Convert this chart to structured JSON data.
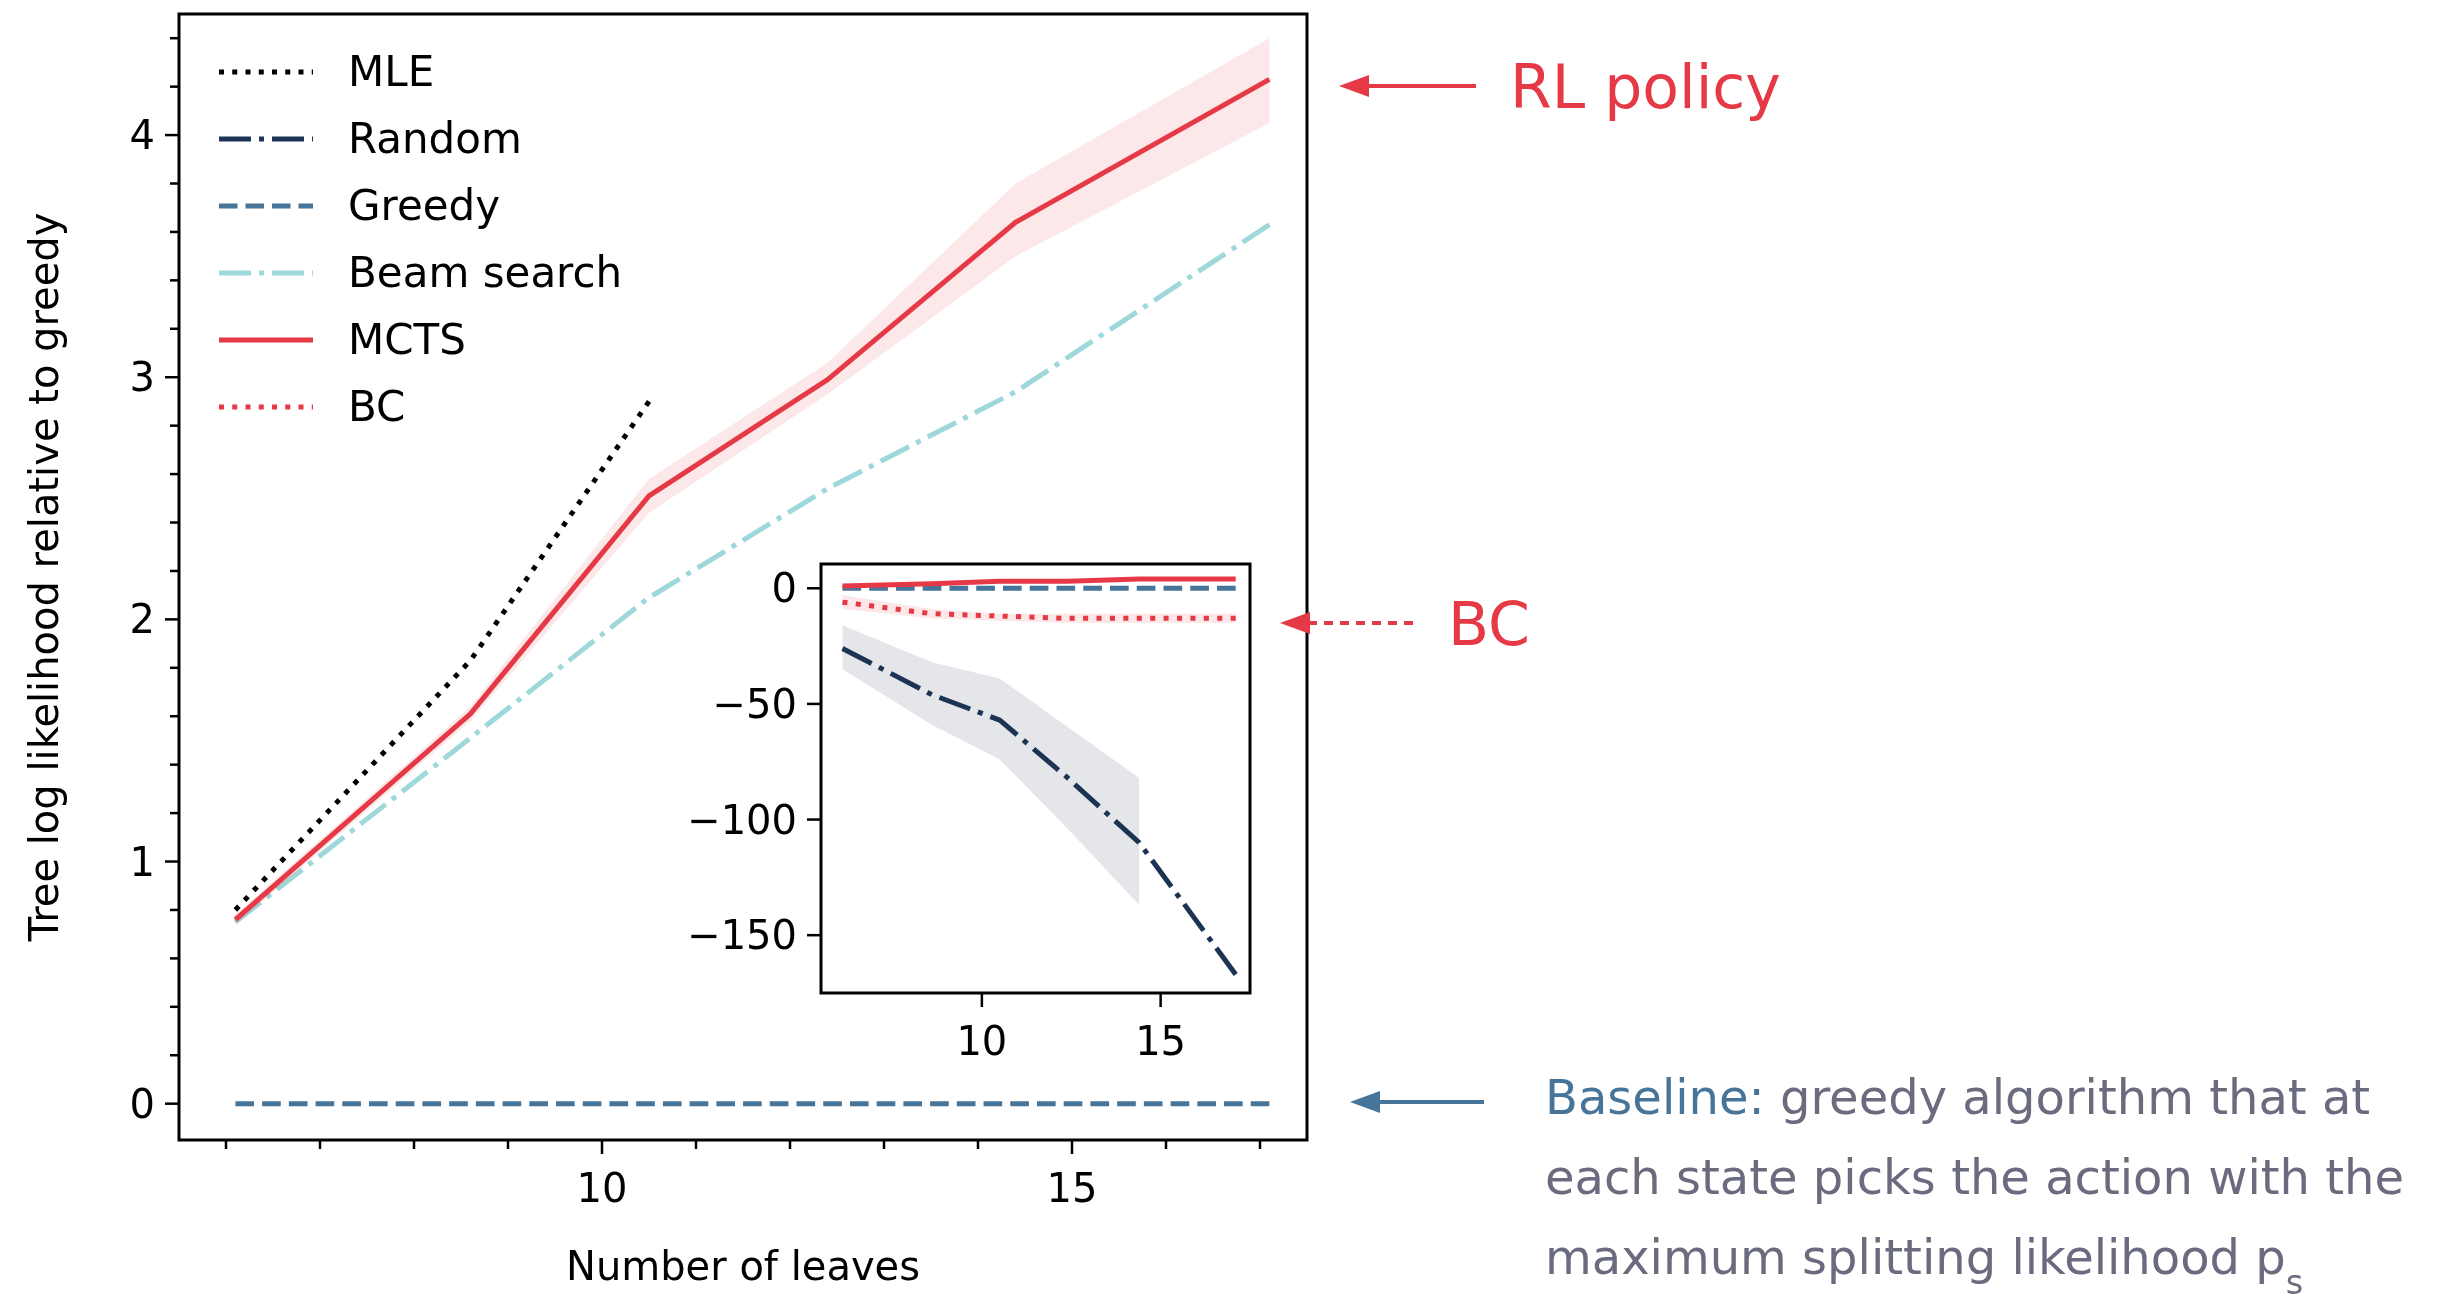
{
  "chart_data": [
    {
      "type": "line",
      "xlabel": "Number of leaves",
      "ylabel": "Tree log likelihood relative to greedy",
      "xlim": [
        5.5,
        17.5
      ],
      "ylim": [
        -0.15,
        4.5
      ],
      "xticks": [
        {
          "value": 6,
          "label": null
        },
        {
          "value": 7,
          "label": null
        },
        {
          "value": 8,
          "label": null
        },
        {
          "value": 9,
          "label": null
        },
        {
          "value": 10,
          "label": "10"
        },
        {
          "value": 11,
          "label": null
        },
        {
          "value": 12,
          "label": null
        },
        {
          "value": 13,
          "label": null
        },
        {
          "value": 14,
          "label": null
        },
        {
          "value": 15,
          "label": "15"
        },
        {
          "value": 16,
          "label": null
        },
        {
          "value": 17,
          "label": null
        }
      ],
      "yticks": [
        0,
        {
          "value": 0.2,
          "label": null
        },
        {
          "value": 0.4,
          "label": null
        },
        {
          "value": 0.6,
          "label": null
        },
        {
          "value": 0.8,
          "label": null
        },
        1,
        {
          "value": 1.2,
          "label": null
        },
        {
          "value": 1.4,
          "label": null
        },
        {
          "value": 1.6,
          "label": null
        },
        {
          "value": 1.8,
          "label": null
        },
        2,
        {
          "value": 2.2,
          "label": null
        },
        {
          "value": 2.4,
          "label": null
        },
        {
          "value": 2.6,
          "label": null
        },
        {
          "value": 2.8,
          "label": null
        },
        3,
        {
          "value": 3.2,
          "label": null
        },
        {
          "value": 3.4,
          "label": null
        },
        {
          "value": 3.6,
          "label": null
        },
        {
          "value": 3.8,
          "label": null
        },
        4,
        {
          "value": 4.2,
          "label": null
        },
        {
          "value": 4.4,
          "label": null
        }
      ],
      "legend": "top left",
      "x": [
        6.1,
        8.6,
        10.5,
        12.4,
        14.4,
        17.1
      ],
      "series": [
        {
          "name": "MLE",
          "color": "#000000",
          "line_style": "dotted",
          "x": [
            6.1,
            8.6,
            10.5
          ],
          "values": [
            0.8,
            1.83,
            2.9
          ]
        },
        {
          "name": "Random",
          "color": "#1d3354",
          "line_style": "dashdot",
          "values": [
            null,
            null,
            null,
            null,
            null,
            null
          ]
        },
        {
          "name": "Greedy",
          "color": "#467599",
          "line_style": "dashed",
          "values": [
            0,
            0,
            0,
            0,
            0,
            0
          ]
        },
        {
          "name": "Beam search",
          "color": "#9ed8db",
          "line_style": "dashdot",
          "values": [
            0.75,
            1.51,
            2.09,
            2.54,
            2.94,
            3.63
          ]
        },
        {
          "name": "MCTS",
          "color": "#e63946",
          "line_style": "solid",
          "values": [
            0.76,
            1.61,
            2.51,
            2.99,
            3.64,
            4.23
          ],
          "lower": [
            0.74,
            1.58,
            2.44,
            2.93,
            3.5,
            4.05
          ],
          "upper": [
            0.78,
            1.64,
            2.58,
            3.06,
            3.8,
            4.4
          ]
        },
        {
          "name": "BC",
          "color": "#e63946",
          "line_style": "dotted",
          "values": [
            null,
            null,
            null,
            null,
            null,
            null
          ]
        }
      ],
      "annotations": [
        "RL policy",
        "Baseline: greedy algorithm that at each state picks the action with the maximum splitting likelihood p$_{s}$"
      ]
    },
    {
      "type": "line",
      "xlim": [
        5.5,
        17.5
      ],
      "ylim": [
        -175,
        10.5
      ],
      "xticks": [
        {
          "value": 10,
          "label": "10"
        },
        {
          "value": 15,
          "label": "15"
        }
      ],
      "yticks": [
        0,
        {
          "value": -50,
          "label": "−50"
        },
        {
          "value": -100,
          "label": "−100"
        },
        {
          "value": -150,
          "label": "−150"
        }
      ],
      "x": [
        6.1,
        8.6,
        10.5,
        12.4,
        14.4,
        17.1
      ],
      "series": [
        {
          "color": "#1d3354",
          "line_style": "dashdot",
          "values": [
            -26,
            -46,
            -57,
            -82,
            -110,
            -167
          ],
          "lower": [
            -35,
            -59,
            -74,
            -104,
            -137,
            null
          ],
          "upper": [
            -16,
            -32,
            -39,
            -60,
            -82,
            null
          ]
        },
        {
          "color": "#467599",
          "line_style": "dashed",
          "values": [
            0,
            0,
            0,
            0,
            0,
            0
          ]
        },
        {
          "color": "#e63946",
          "line_style": "solid",
          "values": [
            1,
            2,
            3,
            3,
            4,
            4
          ]
        },
        {
          "color": "#e63946",
          "line_style": "dotted",
          "values": [
            -6,
            -11,
            -12,
            -13,
            -13,
            -13
          ],
          "lower": [
            -9,
            -13,
            -14,
            -15,
            -15,
            -15
          ],
          "upper": [
            -3,
            -9,
            -11,
            -11,
            -11,
            -11
          ]
        }
      ],
      "annotations": [
        "BC"
      ]
    }
  ]
}
